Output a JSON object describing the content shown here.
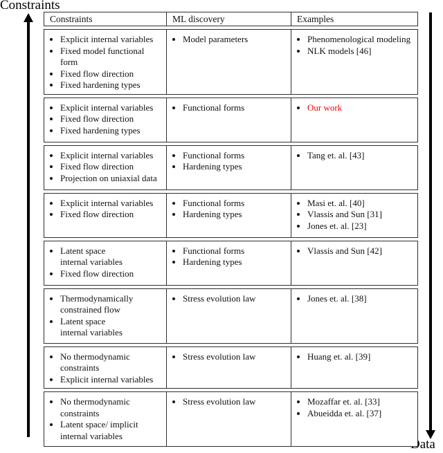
{
  "page": {
    "left_axis_label": "Constraints",
    "right_axis_label": "Data"
  },
  "colors": {
    "our_work_red": "#ee0000",
    "table_border": "#2e2e2e"
  },
  "table": {
    "headers": [
      "Constraints",
      "ML discovery",
      "Examples"
    ],
    "rows": [
      {
        "constraints": [
          "Explicit internal variables",
          "Fixed model functional form",
          "Fixed flow direction",
          "Fixed hardening types"
        ],
        "ml_discovery": [
          "Model parameters"
        ],
        "examples": [
          "Phenomenological modeling",
          "NLK models [46]"
        ]
      },
      {
        "constraints": [
          "Explicit internal variables",
          "Fixed flow direction",
          "Fixed hardening types"
        ],
        "ml_discovery": [
          "Functional forms"
        ],
        "examples": [
          "Our work"
        ],
        "examples_color": "#ee0000"
      },
      {
        "constraints": [
          "Explicit internal variables",
          "Fixed flow direction",
          "Projection on uniaxial data"
        ],
        "ml_discovery": [
          "Functional forms",
          "Hardening types"
        ],
        "examples": [
          "Tang et. al. [43]"
        ]
      },
      {
        "constraints": [
          "Explicit internal variables",
          "Fixed flow direction"
        ],
        "ml_discovery": [
          "Functional forms",
          "Hardening types"
        ],
        "examples": [
          "Masi et. al. [40]",
          "Vlassis and Sun [31]",
          "Jones et. al. [23]"
        ]
      },
      {
        "constraints": [
          "Latent space\ninternal variables",
          "Fixed flow direction"
        ],
        "ml_discovery": [
          "Functional forms",
          "Hardening types"
        ],
        "examples": [
          "Vlassis and Sun [42]"
        ]
      },
      {
        "constraints": [
          "Thermodynamically\nconstrained flow",
          "Latent space\ninternal variables"
        ],
        "ml_discovery": [
          "Stress evolution law"
        ],
        "examples": [
          "Jones et. al. [38]"
        ]
      },
      {
        "constraints": [
          "No thermodynamic\nconstraints",
          "Explicit internal variables"
        ],
        "ml_discovery": [
          "Stress evolution law"
        ],
        "examples": [
          "Huang et. al. [39]"
        ]
      },
      {
        "constraints": [
          "No thermodynamic\nconstraints",
          "Latent space/ implicit\ninternal variables"
        ],
        "ml_discovery": [
          "Stress evolution law"
        ],
        "examples": [
          "Mozaffar et. al. [33]",
          "Abueidda et. al. [37]"
        ]
      }
    ]
  }
}
